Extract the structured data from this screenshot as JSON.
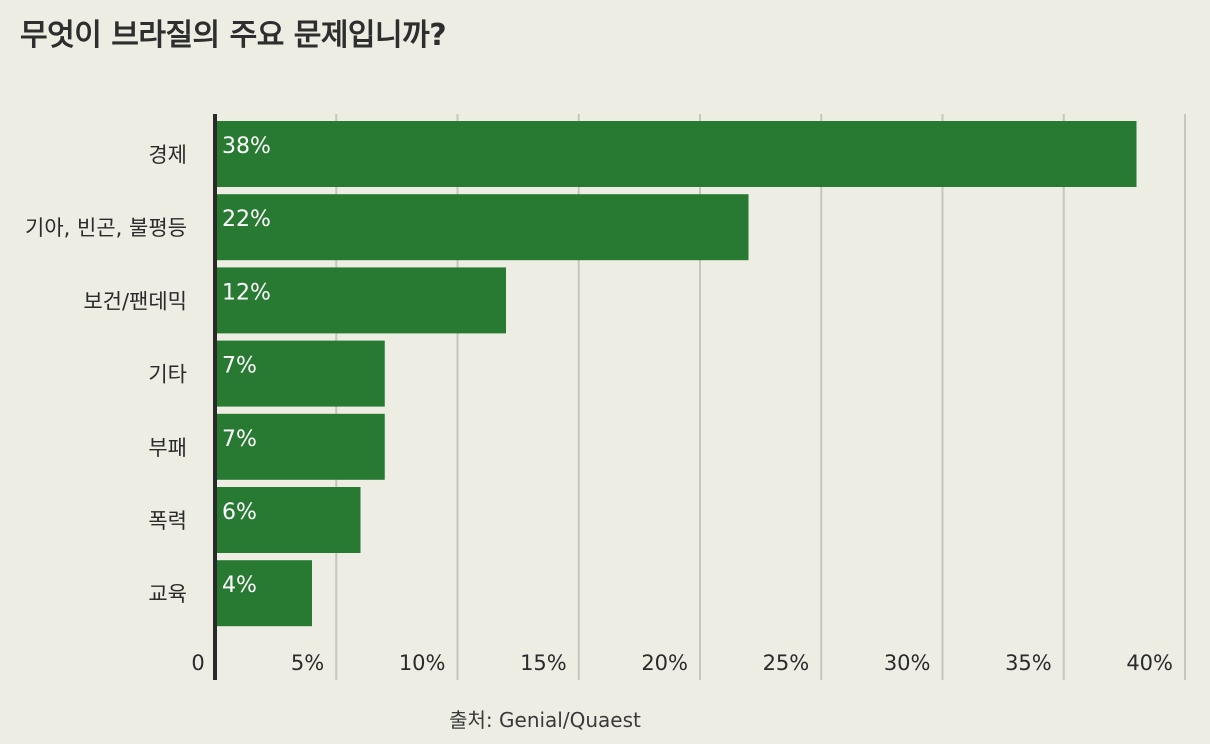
{
  "title": "무엇이 브라질의 주요 문제입니까?",
  "source": "출처: Genial/Quaest",
  "colors": {
    "bar": "#287a33",
    "background": "#edede3",
    "grid": "#c6c6bc",
    "axis": "#2a2a2a"
  },
  "chart_data": {
    "type": "bar",
    "orientation": "horizontal",
    "categories": [
      "경제",
      "기아, 빈곤, 불평등",
      "보건/팬데믹",
      "기타",
      "부패",
      "폭력",
      "교육"
    ],
    "values": [
      38,
      22,
      12,
      7,
      7,
      6,
      4
    ],
    "value_labels": [
      "38%",
      "22%",
      "12%",
      "7%",
      "7%",
      "6%",
      "4%"
    ],
    "xlim": [
      0,
      40
    ],
    "xticks": [
      0,
      5,
      10,
      15,
      20,
      25,
      30,
      35,
      40
    ],
    "xtick_labels": [
      "0",
      "5%",
      "10%",
      "15%",
      "20%",
      "25%",
      "30%",
      "35%",
      "40%"
    ],
    "grid": "vertical"
  }
}
